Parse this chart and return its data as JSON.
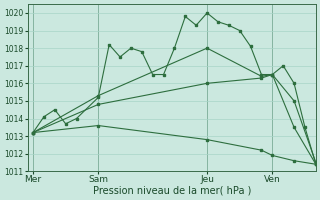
{
  "bg_color": "#cbe8df",
  "grid_color": "#a8d5c8",
  "line_color": "#2d6e3e",
  "xlabel": "Pression niveau de la mer( hPa )",
  "ylim": [
    1011,
    1020.5
  ],
  "yticks": [
    1011,
    1012,
    1013,
    1014,
    1015,
    1016,
    1017,
    1018,
    1019,
    1020
  ],
  "xtick_labels": [
    "Mer",
    "Sam",
    "Jeu",
    "Ven"
  ],
  "xtick_positions": [
    0,
    24,
    64,
    88
  ],
  "xlim": [
    -2,
    104
  ],
  "vline_positions": [
    0,
    24,
    64,
    88
  ],
  "series": [
    {
      "x": [
        0,
        4,
        8,
        12,
        16,
        24,
        28,
        32,
        36,
        40,
        44,
        48,
        52,
        56,
        60,
        64,
        68,
        72,
        76,
        80,
        84,
        88,
        92,
        96,
        100,
        104
      ],
      "y": [
        1013.2,
        1014.1,
        1014.5,
        1013.7,
        1014.0,
        1015.2,
        1018.2,
        1017.5,
        1018.0,
        1017.8,
        1016.5,
        1016.5,
        1018.0,
        1019.8,
        1019.3,
        1020.0,
        1019.5,
        1019.3,
        1019.0,
        1018.1,
        1016.5,
        1016.5,
        1017.0,
        1016.0,
        1013.5,
        1011.4
      ]
    },
    {
      "x": [
        0,
        24,
        64,
        84,
        88,
        96,
        104
      ],
      "y": [
        1013.2,
        1015.3,
        1018.0,
        1016.4,
        1016.5,
        1015.0,
        1011.5
      ]
    },
    {
      "x": [
        0,
        24,
        64,
        84,
        88,
        96,
        104
      ],
      "y": [
        1013.2,
        1014.8,
        1016.0,
        1016.3,
        1016.5,
        1013.5,
        1011.4
      ]
    },
    {
      "x": [
        0,
        24,
        64,
        84,
        88,
        96,
        104
      ],
      "y": [
        1013.2,
        1013.6,
        1012.8,
        1012.2,
        1011.9,
        1011.6,
        1011.4
      ]
    }
  ]
}
